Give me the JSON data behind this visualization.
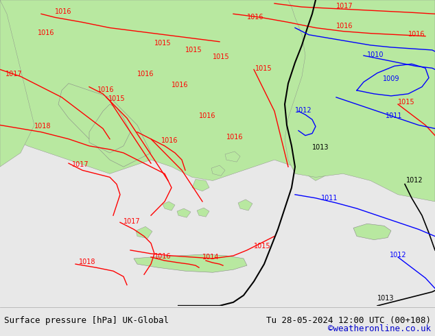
{
  "title_left": "Surface pressure [hPa] UK-Global",
  "title_right": "Tu 28-05-2024 12:00 UTC (00+108)",
  "credit": "©weatheronline.co.uk",
  "bg_color": "#e8e8e8",
  "land_color": "#b8e8a0",
  "sea_color": "#d8d8d8",
  "red_contour_color": "#ff0000",
  "blue_contour_color": "#0000ff",
  "black_contour_color": "#000000",
  "footer_bg": "#e8e8e8",
  "footer_text_color": "#000000",
  "credit_color": "#0000cc",
  "font_size_footer": 9,
  "fig_width": 6.34,
  "fig_height": 4.9,
  "dpi": 100
}
